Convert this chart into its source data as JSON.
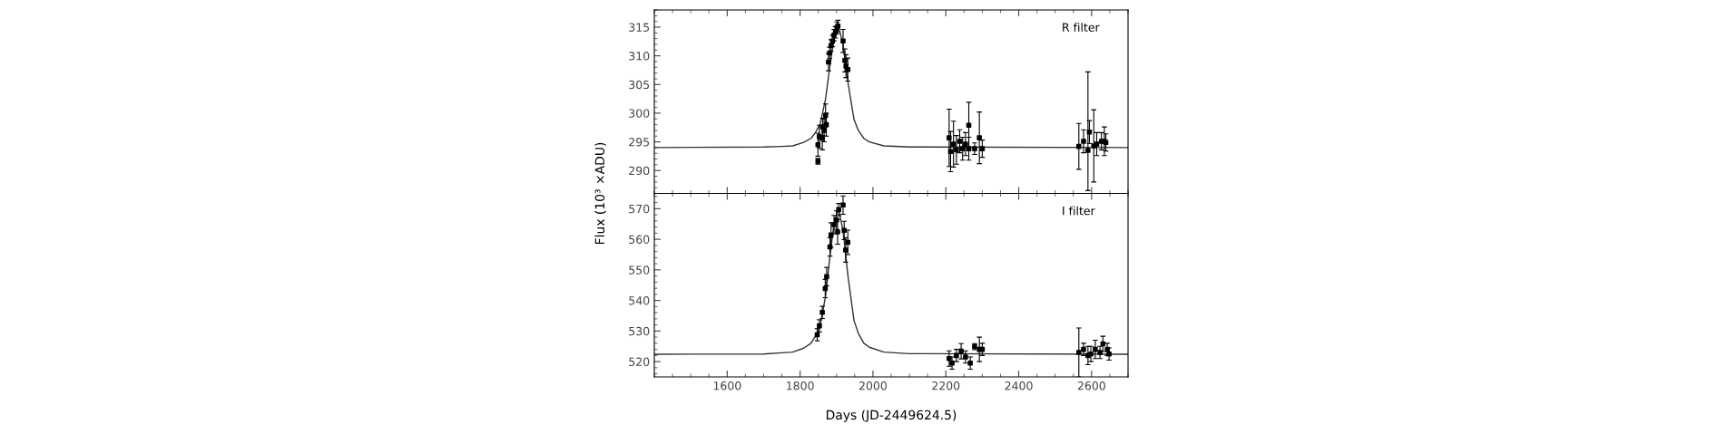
{
  "chart_data": [
    {
      "type": "scatter",
      "ylabel": "Flux (10³ ×ADU)",
      "annotations": [
        "R filter"
      ],
      "xlim": [
        1400,
        2700
      ],
      "xticks": [
        1600,
        1800,
        2000,
        2200,
        2400,
        2600
      ],
      "ylim": [
        286,
        318
      ],
      "yticks": [
        290,
        295,
        300,
        305,
        310,
        315
      ],
      "tick_labels": "y",
      "marker": "square",
      "series": [
        {
          "type": "line",
          "color": "#333333",
          "marker": "none",
          "x": [
            1400,
            1700,
            1750,
            1780,
            1810,
            1830,
            1842,
            1855,
            1870,
            1882,
            1893,
            1905,
            1918,
            1932,
            1948,
            1960,
            1975,
            1990,
            2030,
            2100,
            2700
          ],
          "values": [
            294,
            294.1,
            294.2,
            294.3,
            294.9,
            295.6,
            296.6,
            298.1,
            302.5,
            308.3,
            312.9,
            315.3,
            311.9,
            305.1,
            298.9,
            297.0,
            295.6,
            295.0,
            294.3,
            294.1,
            294
          ]
        },
        {
          "color": "#000000",
          "x": [
            1849,
            1849,
            1853,
            1861,
            1862,
            1866,
            1870,
            1872,
            1878,
            1881,
            1885,
            1889,
            1893,
            1897,
            1901,
            1904,
            1918,
            1923,
            1926,
            1931,
            2209,
            2213,
            2221,
            2229,
            2238,
            2246,
            2254,
            2263,
            2263,
            2279,
            2292,
            2300,
            2565,
            2578,
            2590,
            2594,
            2606,
            2614,
            2627,
            2635,
            2639
          ],
          "values": [
            291.6,
            294.5,
            295.9,
            295.6,
            297.6,
            297,
            299.6,
            298,
            308.9,
            310.5,
            311.8,
            312.6,
            313.6,
            314.1,
            314.9,
            315.2,
            312.6,
            309.2,
            308.2,
            307.6,
            295.7,
            293.3,
            294.6,
            293.6,
            295.1,
            293.8,
            294.6,
            297.9,
            293.8,
            293.8,
            295.7,
            293.8,
            294.2,
            295.1,
            293.5,
            296.7,
            294.3,
            294.6,
            295.1,
            295.1,
            294.9
          ],
          "errors": [
            0.5,
            2,
            2,
            2,
            1.5,
            2,
            2,
            2,
            1.5,
            1,
            1,
            1,
            1,
            1,
            1,
            1,
            2,
            2,
            2,
            2,
            5,
            3.5,
            4,
            2.5,
            2,
            2,
            2,
            4,
            2,
            1,
            4.5,
            1.5,
            4,
            2,
            [
              286.5,
              307.2
            ],
            2,
            6.3,
            2,
            1.5,
            2.5,
            1.5
          ]
        }
      ]
    },
    {
      "type": "scatter",
      "xlabel": "Days (JD-2449624.5)",
      "annotations": [
        "I filter"
      ],
      "xlim": [
        1400,
        2700
      ],
      "xticks": [
        1600,
        1800,
        2000,
        2200,
        2400,
        2600
      ],
      "ylim": [
        515,
        575
      ],
      "yticks": [
        520,
        530,
        540,
        550,
        560,
        570
      ],
      "marker": "square",
      "series": [
        {
          "type": "line",
          "color": "#333333",
          "marker": "none",
          "x": [
            1400,
            1700,
            1750,
            1780,
            1810,
            1830,
            1842,
            1855,
            1870,
            1882,
            1893,
            1905,
            1918,
            1932,
            1948,
            1960,
            1975,
            1990,
            2030,
            2100,
            2700
          ],
          "values": [
            522.4,
            522.5,
            522.9,
            523.1,
            524.4,
            526.0,
            528.3,
            531.6,
            541.5,
            554.6,
            564.9,
            570.3,
            562.7,
            547.4,
            533.4,
            529.2,
            526.0,
            524.7,
            523.1,
            522.6,
            522.4
          ]
        },
        {
          "color": "#000000",
          "x": [
            1847,
            1853,
            1861,
            1869,
            1873,
            1882,
            1885,
            1893,
            1900,
            1903,
            1906,
            1918,
            1921,
            1925,
            1931,
            2209,
            2217,
            2229,
            2242,
            2254,
            2267,
            2279,
            2292,
            2300,
            2565,
            2578,
            2590,
            2598,
            2610,
            2623,
            2631,
            2643,
            2648
          ],
          "values": [
            528.8,
            531.7,
            536.1,
            543.9,
            547.8,
            557.5,
            561.4,
            564.8,
            566.3,
            562.4,
            569.7,
            571.2,
            562.9,
            556.5,
            559.0,
            521.0,
            519.5,
            522.0,
            523.4,
            521.5,
            519.5,
            524.9,
            524.0,
            524.0,
            523.0,
            524.0,
            522.0,
            522.5,
            524.0,
            523.0,
            525.8,
            524.0,
            522.5
          ],
          "errors": [
            2,
            2,
            2,
            3,
            3,
            3,
            4,
            3,
            3,
            4,
            2,
            3,
            3,
            4,
            4,
            2.5,
            2,
            2,
            2.5,
            2,
            2,
            1,
            4,
            2,
            8,
            2,
            3,
            2.5,
            3,
            2,
            2.5,
            2,
            2
          ]
        }
      ]
    }
  ]
}
